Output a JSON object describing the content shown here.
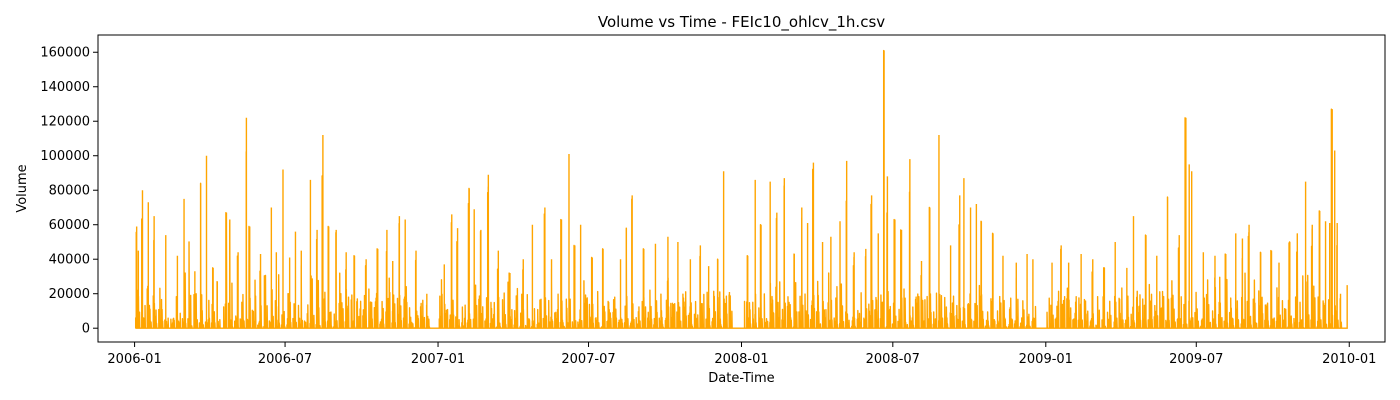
{
  "chart_data": {
    "type": "line",
    "title": "Volume vs Time - FEIc10_ohlcv_1h.csv",
    "xlabel": "Date-Time",
    "ylabel": "Volume",
    "xlim": [
      "2005-11-18",
      "2010-02-13"
    ],
    "ylim": [
      -8000,
      170000
    ],
    "x_ticks": [
      "2006-01",
      "2006-07",
      "2007-01",
      "2007-07",
      "2008-01",
      "2008-07",
      "2009-01",
      "2009-07",
      "2010-01"
    ],
    "y_ticks": [
      0,
      20000,
      40000,
      60000,
      80000,
      100000,
      120000,
      140000,
      160000
    ],
    "grid": false,
    "legend": "none",
    "series": [
      {
        "color": "#FFA500",
        "baseline": 0,
        "data_start": "2006-01-01",
        "data_end": "2009-12-31",
        "trading_gaps": [
          [
            "2006-04-14",
            "2006-04-18"
          ],
          [
            "2006-12-22",
            "2007-01-02"
          ],
          [
            "2007-12-21",
            "2008-01-04"
          ],
          [
            "2008-12-20",
            "2009-01-02"
          ],
          [
            "2009-12-23",
            "2010-01-04"
          ]
        ],
        "peaks": [
          [
            "2006-01-03",
            59000
          ],
          [
            "2006-01-05",
            45000
          ],
          [
            "2006-01-10",
            80000
          ],
          [
            "2006-01-17",
            73000
          ],
          [
            "2006-01-24",
            65000
          ],
          [
            "2006-02-07",
            54000
          ],
          [
            "2006-02-21",
            42000
          ],
          [
            "2006-03-01",
            75000
          ],
          [
            "2006-03-07",
            50000
          ],
          [
            "2006-03-14",
            33000
          ],
          [
            "2006-03-21",
            84000
          ],
          [
            "2006-03-28",
            100000
          ],
          [
            "2006-04-05",
            35000
          ],
          [
            "2006-04-10",
            27000
          ],
          [
            "2006-04-21",
            67000
          ],
          [
            "2006-04-25",
            63000
          ],
          [
            "2006-05-05",
            44000
          ],
          [
            "2006-05-15",
            122000
          ],
          [
            "2006-05-19",
            59000
          ],
          [
            "2006-06-01",
            43000
          ],
          [
            "2006-06-14",
            70000
          ],
          [
            "2006-06-20",
            44000
          ],
          [
            "2006-06-28",
            92000
          ],
          [
            "2006-07-06",
            41000
          ],
          [
            "2006-07-13",
            56000
          ],
          [
            "2006-07-20",
            45000
          ],
          [
            "2006-07-31",
            86000
          ],
          [
            "2006-08-08",
            57000
          ],
          [
            "2006-08-15",
            112000
          ],
          [
            "2006-08-22",
            59000
          ],
          [
            "2006-08-31",
            57000
          ],
          [
            "2006-09-12",
            44000
          ],
          [
            "2006-09-22",
            42000
          ],
          [
            "2006-10-06",
            40000
          ],
          [
            "2006-10-20",
            46000
          ],
          [
            "2006-10-31",
            57000
          ],
          [
            "2006-11-07",
            39000
          ],
          [
            "2006-11-15",
            65000
          ],
          [
            "2006-11-22",
            63000
          ],
          [
            "2006-12-05",
            45000
          ],
          [
            "2006-12-18",
            20000
          ],
          [
            "2007-01-08",
            37000
          ],
          [
            "2007-01-17",
            66000
          ],
          [
            "2007-01-24",
            58000
          ],
          [
            "2007-02-07",
            81000
          ],
          [
            "2007-02-13",
            69000
          ],
          [
            "2007-02-21",
            57000
          ],
          [
            "2007-03-02",
            89000
          ],
          [
            "2007-03-14",
            45000
          ],
          [
            "2007-03-28",
            32000
          ],
          [
            "2007-04-13",
            40000
          ],
          [
            "2007-04-24",
            60000
          ],
          [
            "2007-05-09",
            70000
          ],
          [
            "2007-05-17",
            40000
          ],
          [
            "2007-05-29",
            63000
          ],
          [
            "2007-06-07",
            101000
          ],
          [
            "2007-06-14",
            48000
          ],
          [
            "2007-06-21",
            60000
          ],
          [
            "2007-07-05",
            41000
          ],
          [
            "2007-07-18",
            46000
          ],
          [
            "2007-08-08",
            40000
          ],
          [
            "2007-08-15",
            58000
          ],
          [
            "2007-08-22",
            77000
          ],
          [
            "2007-09-05",
            46000
          ],
          [
            "2007-09-19",
            49000
          ],
          [
            "2007-10-04",
            53000
          ],
          [
            "2007-10-16",
            50000
          ],
          [
            "2007-10-31",
            40000
          ],
          [
            "2007-11-12",
            48000
          ],
          [
            "2007-11-22",
            36000
          ],
          [
            "2007-12-03",
            40000
          ],
          [
            "2007-12-10",
            91000
          ],
          [
            "2007-12-17",
            21000
          ],
          [
            "2008-01-08",
            42000
          ],
          [
            "2008-01-17",
            86000
          ],
          [
            "2008-01-24",
            60000
          ],
          [
            "2008-02-04",
            85000
          ],
          [
            "2008-02-12",
            67000
          ],
          [
            "2008-02-21",
            87000
          ],
          [
            "2008-03-04",
            43000
          ],
          [
            "2008-03-13",
            70000
          ],
          [
            "2008-03-20",
            61000
          ],
          [
            "2008-03-27",
            96000
          ],
          [
            "2008-04-07",
            50000
          ],
          [
            "2008-04-17",
            53000
          ],
          [
            "2008-04-28",
            62000
          ],
          [
            "2008-05-06",
            97000
          ],
          [
            "2008-05-15",
            44000
          ],
          [
            "2008-05-29",
            46000
          ],
          [
            "2008-06-05",
            77000
          ],
          [
            "2008-06-13",
            55000
          ],
          [
            "2008-06-20",
            161000
          ],
          [
            "2008-06-24",
            88000
          ],
          [
            "2008-07-03",
            63000
          ],
          [
            "2008-07-11",
            57000
          ],
          [
            "2008-07-21",
            98000
          ],
          [
            "2008-08-04",
            39000
          ],
          [
            "2008-08-14",
            70000
          ],
          [
            "2008-08-25",
            112000
          ],
          [
            "2008-09-08",
            48000
          ],
          [
            "2008-09-19",
            77000
          ],
          [
            "2008-09-24",
            87000
          ],
          [
            "2008-10-02",
            70000
          ],
          [
            "2008-10-09",
            72000
          ],
          [
            "2008-10-15",
            62000
          ],
          [
            "2008-10-29",
            55000
          ],
          [
            "2008-11-10",
            42000
          ],
          [
            "2008-11-26",
            38000
          ],
          [
            "2008-12-09",
            43000
          ],
          [
            "2008-12-16",
            40000
          ],
          [
            "2009-01-08",
            38000
          ],
          [
            "2009-01-19",
            48000
          ],
          [
            "2009-01-28",
            38000
          ],
          [
            "2009-02-12",
            43000
          ],
          [
            "2009-02-26",
            40000
          ],
          [
            "2009-03-12",
            35000
          ],
          [
            "2009-03-25",
            50000
          ],
          [
            "2009-04-08",
            35000
          ],
          [
            "2009-04-16",
            65000
          ],
          [
            "2009-05-01",
            54000
          ],
          [
            "2009-05-14",
            42000
          ],
          [
            "2009-05-27",
            76000
          ],
          [
            "2009-06-10",
            54000
          ],
          [
            "2009-06-18",
            122000
          ],
          [
            "2009-06-22",
            95000
          ],
          [
            "2009-06-25",
            91000
          ],
          [
            "2009-07-09",
            44000
          ],
          [
            "2009-07-23",
            42000
          ],
          [
            "2009-08-05",
            43000
          ],
          [
            "2009-08-17",
            55000
          ],
          [
            "2009-08-25",
            52000
          ],
          [
            "2009-09-02",
            60000
          ],
          [
            "2009-09-16",
            44000
          ],
          [
            "2009-09-29",
            45000
          ],
          [
            "2009-10-08",
            38000
          ],
          [
            "2009-10-21",
            50000
          ],
          [
            "2009-10-30",
            55000
          ],
          [
            "2009-11-09",
            85000
          ],
          [
            "2009-11-17",
            60000
          ],
          [
            "2009-11-26",
            68000
          ],
          [
            "2009-12-03",
            62000
          ],
          [
            "2009-12-08",
            61000
          ],
          [
            "2009-12-11",
            127000
          ],
          [
            "2009-12-14",
            103000
          ],
          [
            "2009-12-17",
            61000
          ],
          [
            "2009-12-21",
            20000
          ],
          [
            "2009-12-29",
            25000
          ]
        ]
      }
    ]
  }
}
